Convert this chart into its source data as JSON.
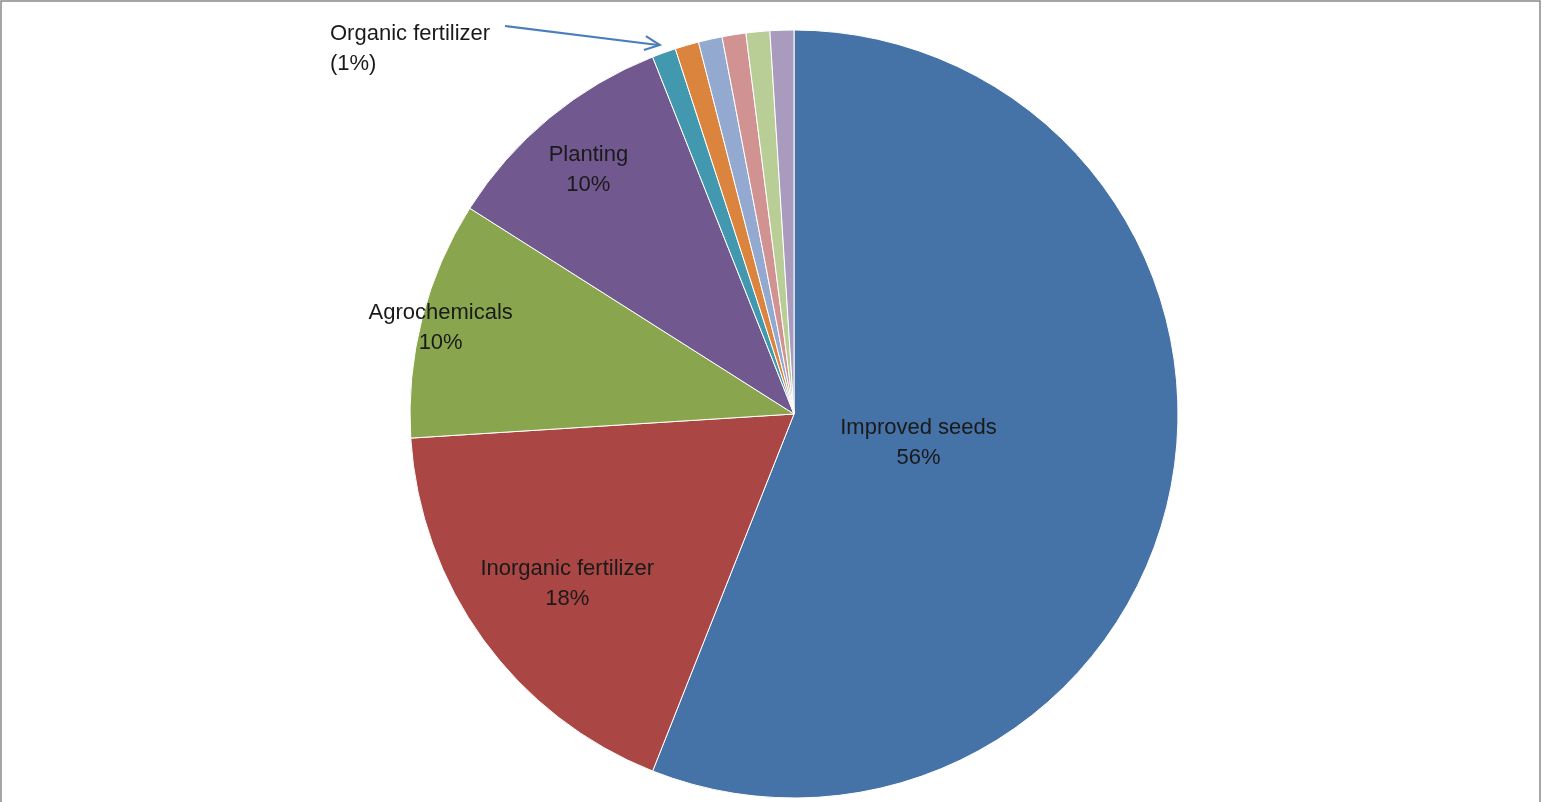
{
  "chart_data": {
    "type": "pie",
    "categories": [
      "Improved seeds",
      "Inorganic fertilizer",
      "Agrochemicals",
      "Planting",
      "Organic fertilizer",
      null,
      null,
      null,
      null,
      null
    ],
    "values": [
      56,
      18,
      10,
      10,
      1,
      1,
      1,
      1,
      1,
      1
    ],
    "colors": [
      "#4572a7",
      "#aa4643",
      "#89a54e",
      "#71588f",
      "#4198af",
      "#db843d",
      "#93a9cf",
      "#d19392",
      "#b9cd96",
      "#a99bbd"
    ],
    "value_labels": [
      "56%",
      "18%",
      "10%",
      "10%",
      "(1%)",
      null,
      null,
      null,
      null,
      null
    ]
  }
}
